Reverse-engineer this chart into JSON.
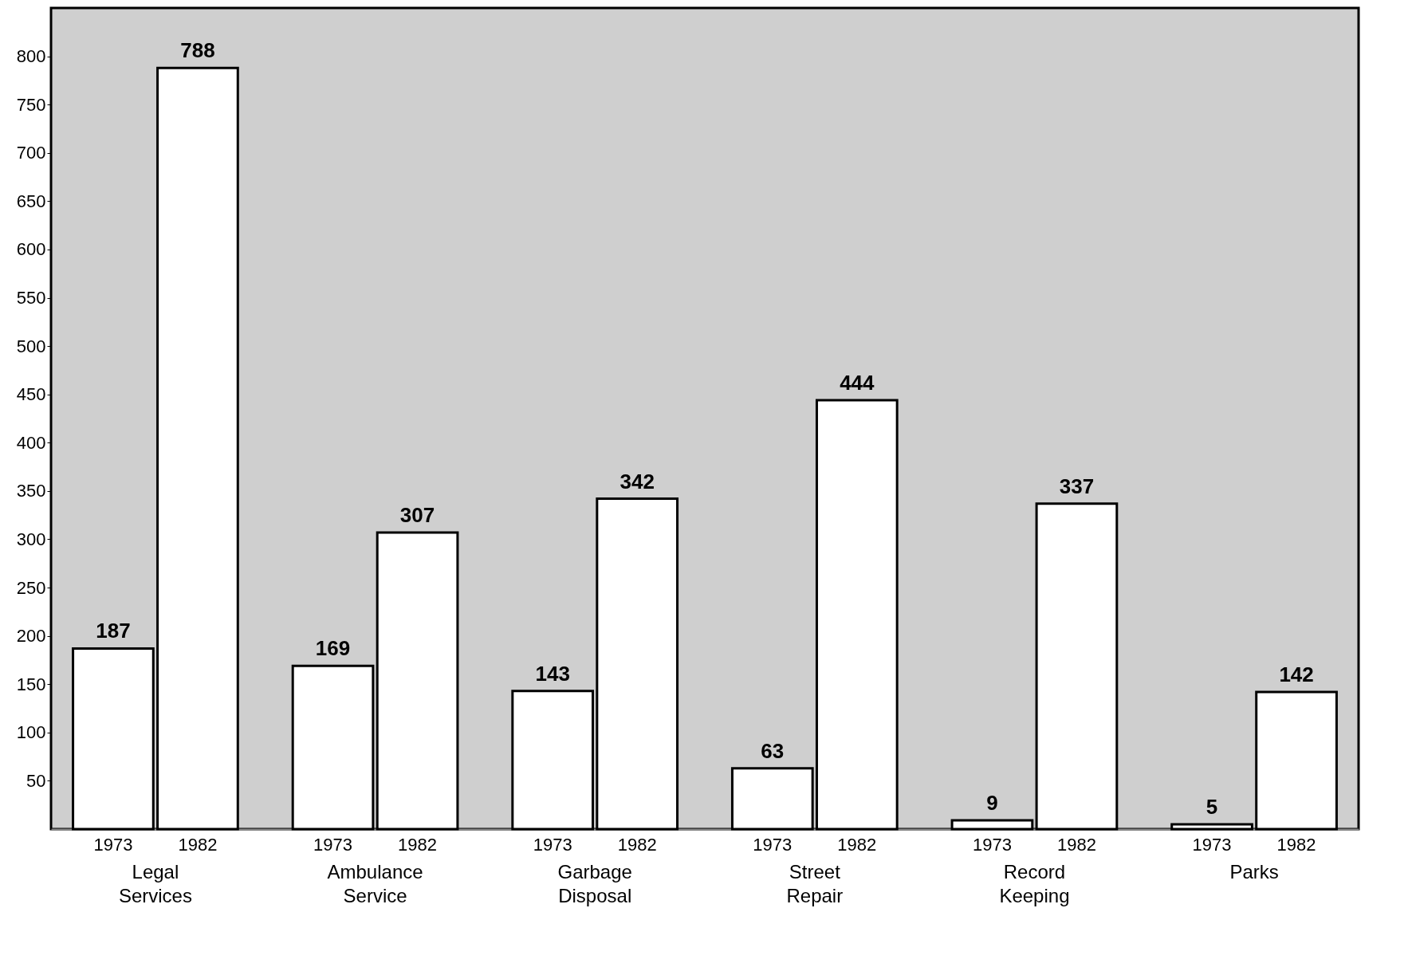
{
  "chart_data": {
    "type": "bar",
    "categories": [
      "Legal Services",
      "Ambulance Service",
      "Garbage Disposal",
      "Street Repair",
      "Record Keeping",
      "Parks"
    ],
    "series": [
      {
        "name": "1973",
        "color": "#ffffff",
        "values": [
          187,
          169,
          143,
          63,
          9,
          5
        ]
      },
      {
        "name": "1982",
        "color": "#ffffff",
        "values": [
          788,
          307,
          342,
          444,
          337,
          142
        ]
      }
    ],
    "ylim": [
      0,
      850
    ],
    "yticks": [
      50,
      100,
      150,
      200,
      250,
      300,
      350,
      400,
      450,
      500,
      550,
      600,
      650,
      700,
      750,
      800
    ],
    "data_labels": true
  }
}
